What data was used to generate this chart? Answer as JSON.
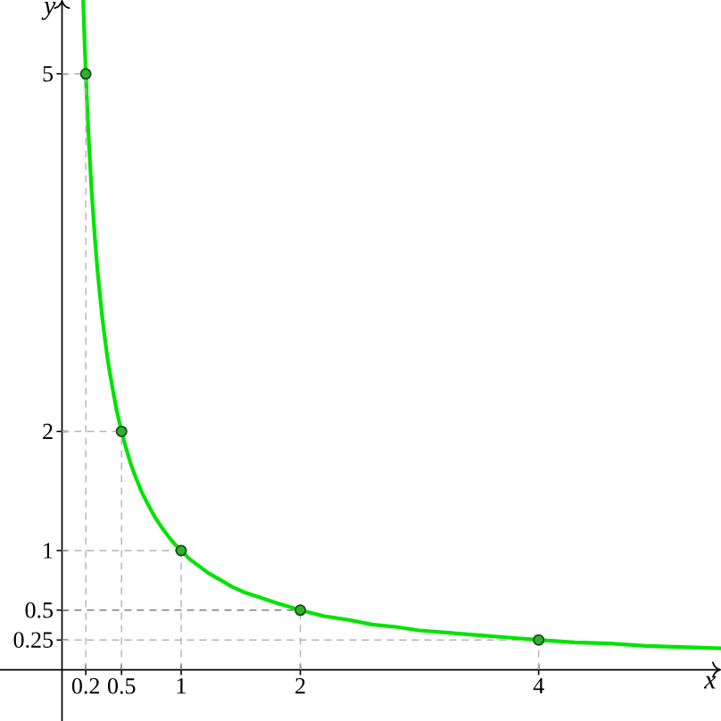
{
  "chart_data": {
    "type": "line",
    "xlabel": "x",
    "ylabel": "y",
    "xlim": [
      -0.52,
      5.53
    ],
    "ylim": [
      -0.43,
      5.62
    ],
    "xticks": [
      0.2,
      0.5,
      1,
      2,
      4
    ],
    "yticks": [
      0.25,
      0.5,
      1,
      2,
      5
    ],
    "series": [
      {
        "color": "#b4b4b4",
        "line_style": "dashed",
        "marker": "none",
        "x": [
          0,
          0.2,
          null,
          0,
          0.5,
          null,
          0,
          1,
          null,
          0,
          4
        ],
        "values": [
          5,
          5,
          null,
          2,
          2,
          null,
          1,
          1,
          null,
          0.25,
          0.25
        ]
      },
      {
        "color": "#808080",
        "line_style": "dashed",
        "marker": "none",
        "x": [
          0,
          2
        ],
        "values": [
          0.5,
          0.5
        ]
      },
      {
        "color": "#00e400",
        "line_style": "solid",
        "marker": "none",
        "x": [
          0.178,
          0.19,
          0.2,
          0.21,
          0.22,
          0.23,
          0.24,
          0.25,
          0.26,
          0.28,
          0.3,
          0.32,
          0.34,
          0.36,
          0.38,
          0.4,
          0.43,
          0.46,
          0.5,
          0.54,
          0.58,
          0.62,
          0.67,
          0.72,
          0.78,
          0.84,
          0.9,
          0.95,
          1,
          1.07,
          1.15,
          1.23,
          1.32,
          1.42,
          1.53,
          1.65,
          1.8,
          2,
          2.2,
          2.4,
          2.6,
          2.8,
          3,
          3.25,
          3.5,
          3.75,
          4,
          4.3,
          4.6,
          4.9,
          5.2,
          5.53
        ],
        "values": [
          5.62,
          5.26,
          5,
          4.76,
          4.55,
          4.35,
          4.17,
          4,
          3.85,
          3.57,
          3.33,
          3.13,
          2.94,
          2.78,
          2.63,
          2.5,
          2.33,
          2.17,
          2,
          1.85,
          1.72,
          1.61,
          1.49,
          1.39,
          1.28,
          1.19,
          1.11,
          1.05,
          1,
          0.93,
          0.87,
          0.81,
          0.76,
          0.7,
          0.65,
          0.61,
          0.56,
          0.5,
          0.45,
          0.42,
          0.38,
          0.36,
          0.33,
          0.31,
          0.29,
          0.27,
          0.25,
          0.23,
          0.22,
          0.2,
          0.19,
          0.18
        ]
      },
      {
        "type": "lollipop",
        "color": "#2fb02f",
        "line_style": "dashed",
        "marker": "circle",
        "x": [
          0.2,
          0.5,
          1,
          2,
          4
        ],
        "values": [
          5,
          2,
          1,
          0.5,
          0.25
        ]
      }
    ]
  }
}
